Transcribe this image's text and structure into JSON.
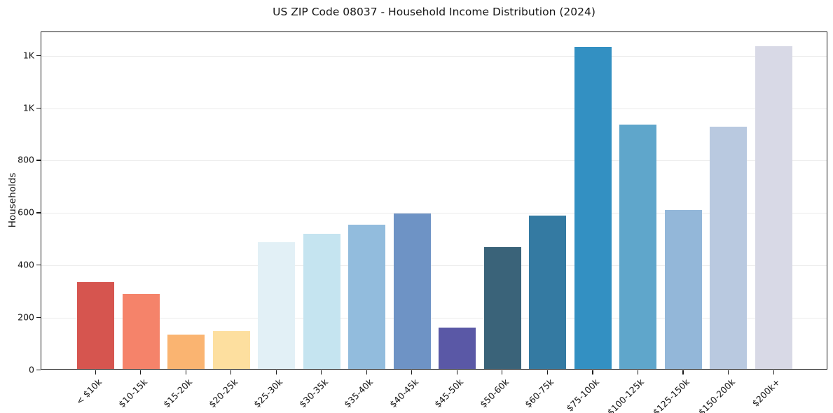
{
  "page_title": "US ZIP Code 08037 - Household Income Distribution (2024)",
  "chart_data": {
    "type": "bar",
    "title": "US ZIP Code 08037 - Household Income Distribution (2024)",
    "xlabel": "",
    "ylabel": "Households",
    "categories": [
      "< $10k",
      "$10-15k",
      "$15-20k",
      "$20-25k",
      "$25-30k",
      "$30-35k",
      "$35-40k",
      "$40-45k",
      "$45-50k",
      "$50-60k",
      "$60-75k",
      "$75-100k",
      "$100-125k",
      "$125-150k",
      "$150-200k",
      "$200k+"
    ],
    "values": [
      330,
      287,
      130,
      143,
      484,
      516,
      549,
      594,
      157,
      465,
      586,
      1228,
      933,
      605,
      923,
      1231
    ],
    "bar_colors": [
      "#d6554f",
      "#f5836a",
      "#fab471",
      "#fddf9f",
      "#e2f0f6",
      "#c5e4f0",
      "#92bcdd",
      "#6e93c5",
      "#5a58a6",
      "#3a6379",
      "#347aa2",
      "#3390c2",
      "#5fa6cb",
      "#93b7d9",
      "#b9c9e0",
      "#d8d9e6"
    ],
    "ylim": [
      0,
      1290
    ],
    "yticks": [
      {
        "value": 0,
        "label": "0"
      },
      {
        "value": 200,
        "label": "200"
      },
      {
        "value": 400,
        "label": "400"
      },
      {
        "value": 600,
        "label": "600"
      },
      {
        "value": 800,
        "label": "800"
      },
      {
        "value": 1000,
        "label": "1K"
      },
      {
        "value": 1200,
        "label": "1K"
      }
    ],
    "grid": true,
    "legend_position": "none",
    "background_color": "#ffffff",
    "grid_color": "#ececec",
    "axis_color": "#1a1a1a",
    "text_color": "#151515"
  }
}
